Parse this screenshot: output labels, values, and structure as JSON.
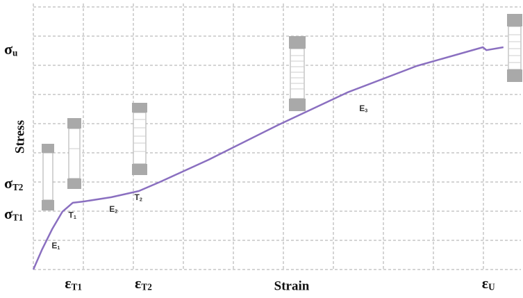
{
  "chart_data": {
    "type": "line",
    "x_label": "Strain",
    "y_label": "Stress",
    "x": [
      0,
      0.17,
      0.375,
      0.58,
      0.79,
      1.0,
      1.56,
      2.11,
      2.53,
      3.5,
      4.89,
      6.28,
      7.67,
      8.99,
      9.06,
      9.4
    ],
    "values": [
      0,
      0.67,
      1.38,
      1.98,
      2.29,
      2.33,
      2.48,
      2.69,
      3.0,
      3.76,
      4.95,
      6.07,
      6.98,
      7.62,
      7.52,
      7.62
    ],
    "color": "#8a6fc0",
    "xlim": [
      0,
      9.75
    ],
    "ylim": [
      0,
      9.12
    ],
    "xticks": [
      {
        "value": 0.8,
        "label": "εT1"
      },
      {
        "value": 2.2,
        "label": "εT2"
      },
      {
        "value": 9.1,
        "label": "εU"
      }
    ],
    "yticks": [
      {
        "value": 1.86,
        "label": "σT1"
      },
      {
        "value": 2.9,
        "label": "σT2"
      },
      {
        "value": 7.5,
        "label": "σu"
      }
    ],
    "x_grid": [
      0,
      1,
      2,
      3,
      4,
      5,
      6,
      7,
      8,
      9
    ],
    "y_grid": [
      0,
      1,
      2,
      3,
      4,
      5,
      6,
      7,
      8,
      9
    ],
    "grid": true,
    "annotations": [
      {
        "text": "E1",
        "x": 0.45,
        "y": 0.8
      },
      {
        "text": "T1",
        "x": 0.78,
        "y": 1.85
      },
      {
        "text": "E2",
        "x": 1.6,
        "y": 2.05
      },
      {
        "text": "T2",
        "x": 2.1,
        "y": 2.45
      },
      {
        "text": "E3",
        "x": 6.6,
        "y": 5.5
      }
    ]
  }
}
